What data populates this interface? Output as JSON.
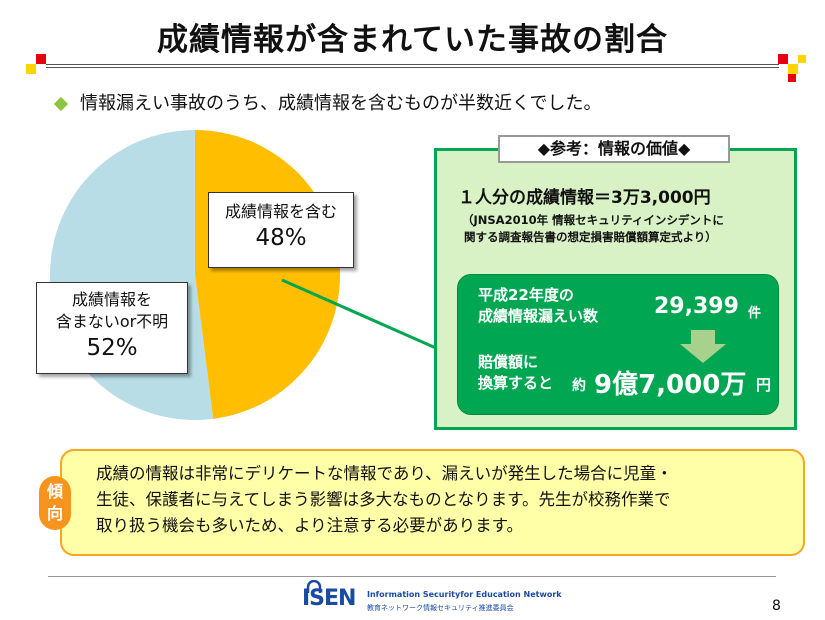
{
  "title": "成績情報が含まれていた事故の割合",
  "bullet": "情報漏えい事故のうち、成績情報を含むものが半数近くでした。",
  "chart_data": {
    "type": "pie",
    "slices": [
      {
        "label": "成績情報を含む",
        "value": 48,
        "value_label": "48%",
        "color": "#ffbf00"
      },
      {
        "label_lines": [
          "成績情報を",
          "含まないor不明"
        ],
        "value": 52,
        "value_label": "52%",
        "color": "#b9dde6"
      }
    ]
  },
  "reference": {
    "heading": "◆参考：情報の価値◆",
    "per_person": "１人分の成績情報＝3万3,000円",
    "note_lines": [
      "（JNSA2010年 情報セキュリティインシデントに",
      "関する調査報告書の想定損害賠償額算定式より）"
    ],
    "leak_label_lines": [
      "平成22年度の",
      "成績情報漏えい数"
    ],
    "leak_count": "29,399",
    "leak_unit": "件",
    "comp_label_lines": [
      "賠償額に",
      "換算すると"
    ],
    "approx": "約",
    "amount": "9億7,000万",
    "amount_unit": "円"
  },
  "tendency": {
    "badge_lines": [
      "傾",
      "向"
    ],
    "lines": [
      "成績の情報は非常にデリケートな情報であり、漏えいが発生した場合に児童・",
      "生徒、保護者に与えてしまう影響は多大なものとなります。先生が校務作業で",
      "取り扱う機会も多いため、より注意する必要があります。"
    ]
  },
  "footer": {
    "logo": "ISEN",
    "org_en": "Information Securityfor Education Network",
    "org_ja": "教育ネットワーク情報セキュリティ推進委員会",
    "page": "8"
  },
  "colors": {
    "accent_green": "#00a651",
    "light_green": "#d9f2c5",
    "orange": "#f7941d",
    "yellow_box": "#ffffa8"
  }
}
